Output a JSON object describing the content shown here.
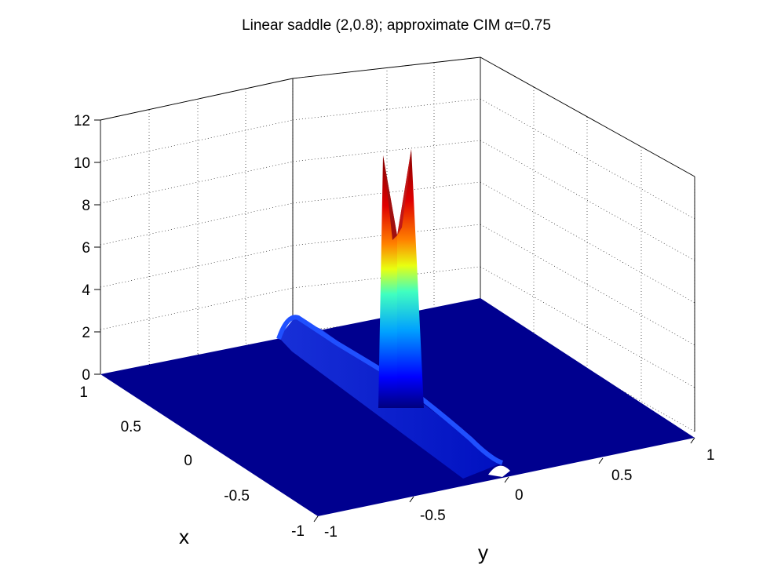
{
  "chart_data": {
    "type": "surface",
    "title": "Linear saddle (2,0.8); approximate CIM α=0.75",
    "xlabel": "x",
    "ylabel": "y",
    "zlabel": "",
    "xlim": [
      -1,
      1
    ],
    "ylim": [
      -1,
      1
    ],
    "zlim": [
      0,
      12
    ],
    "x_ticks": [
      "-1",
      "-0.5",
      "0",
      "0.5",
      "1"
    ],
    "y_ticks": [
      "-1",
      "-0.5",
      "0",
      "0.5",
      "1"
    ],
    "z_ticks": [
      "0",
      "2",
      "4",
      "6",
      "8",
      "10",
      "12"
    ],
    "grid": true,
    "colormap": "jet",
    "features": {
      "baseline_z": 0,
      "ridge_line": "y = 0",
      "ridge_height": 0.9,
      "peak": {
        "x": 0.05,
        "y": 0.0,
        "z": 10.5
      },
      "twin_spikes_z": [
        10.3,
        10.7
      ]
    }
  }
}
